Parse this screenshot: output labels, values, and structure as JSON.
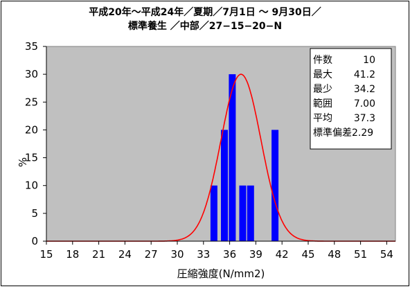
{
  "chart_data": {
    "type": "bar",
    "title_lines": [
      "平成20年～平成24年／夏期／7月1日 ～ 9月30日／",
      "標準養生 ／中部／27−15−20−N"
    ],
    "xlabel": "圧縮強度(N/mm2)",
    "ylabel": "%",
    "xlim": [
      15,
      55
    ],
    "ylim": [
      0,
      35
    ],
    "x_ticks": [
      15,
      18,
      21,
      24,
      27,
      30,
      33,
      36,
      39,
      42,
      45,
      48,
      51,
      54
    ],
    "y_ticks": [
      0,
      5,
      10,
      15,
      20,
      25,
      30,
      35
    ],
    "grid": false,
    "bar_color": "#0000ff",
    "curve_color": "#ff0000",
    "plot_background": "#c0c0c0",
    "bars": [
      {
        "x": 34.2,
        "value": 10
      },
      {
        "x": 35.4,
        "value": 20
      },
      {
        "x": 36.3,
        "value": 30
      },
      {
        "x": 37.5,
        "value": 10
      },
      {
        "x": 38.4,
        "value": 10
      },
      {
        "x": 41.2,
        "value": 20
      }
    ],
    "normal_curve": {
      "mean": 37.3,
      "sd": 2.29,
      "peak": 30
    },
    "stats_box": [
      {
        "label": "件数",
        "value": "10"
      },
      {
        "label": "最大",
        "value": "41.2"
      },
      {
        "label": "最少",
        "value": "34.2"
      },
      {
        "label": "範囲",
        "value": "7.00"
      },
      {
        "label": "平均",
        "value": "37.3"
      },
      {
        "label": "標準偏差",
        "value": "2.29"
      }
    ]
  }
}
